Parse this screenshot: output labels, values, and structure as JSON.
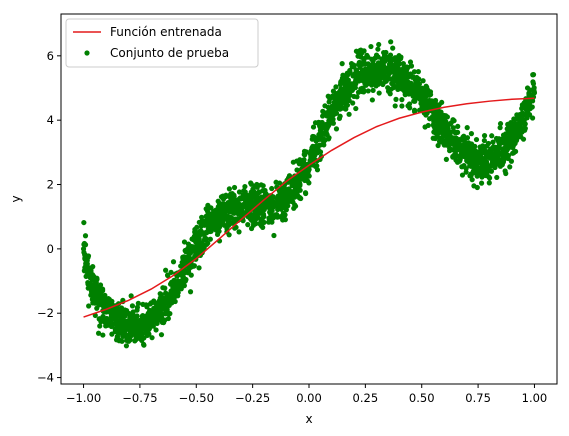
{
  "chart_data": {
    "type": "scatter",
    "title": "",
    "xlabel": "x",
    "ylabel": "y",
    "xlim": [
      -1.1,
      1.1
    ],
    "ylim": [
      -4.2,
      7.3
    ],
    "x_ticks": [
      -1.0,
      -0.75,
      -0.5,
      -0.25,
      0.0,
      0.25,
      0.5,
      0.75,
      1.0
    ],
    "x_tick_labels": [
      "−1.00",
      "−0.75",
      "−0.50",
      "−0.25",
      "0.00",
      "0.25",
      "0.50",
      "0.75",
      "1.00"
    ],
    "y_ticks": [
      -4,
      -2,
      0,
      2,
      4,
      6
    ],
    "y_tick_labels": [
      "−4",
      "−2",
      "0",
      "2",
      "4",
      "6"
    ],
    "grid": false,
    "legend_position": "top-left",
    "series": [
      {
        "name": "Función entrenada",
        "kind": "line",
        "color": "#e41a1c",
        "x": [
          -1.0,
          -0.9,
          -0.8,
          -0.7,
          -0.6,
          -0.5,
          -0.4,
          -0.3,
          -0.2,
          -0.1,
          0.0,
          0.1,
          0.2,
          0.3,
          0.4,
          0.5,
          0.6,
          0.7,
          0.8,
          0.9,
          1.0
        ],
        "y": [
          -2.12,
          -1.88,
          -1.6,
          -1.25,
          -0.82,
          -0.3,
          0.3,
          0.92,
          1.52,
          2.1,
          2.6,
          3.06,
          3.46,
          3.8,
          4.06,
          4.25,
          4.4,
          4.51,
          4.59,
          4.65,
          4.68
        ]
      },
      {
        "name": "Conjunto de prueba",
        "kind": "scatter",
        "color": "#008000",
        "x": [
          -1.0,
          -0.97,
          -0.94,
          -0.9,
          -0.86,
          -0.82,
          -0.78,
          -0.74,
          -0.7,
          -0.66,
          -0.62,
          -0.58,
          -0.54,
          -0.5,
          -0.46,
          -0.42,
          -0.38,
          -0.34,
          -0.3,
          -0.26,
          -0.22,
          -0.18,
          -0.14,
          -0.1,
          -0.06,
          -0.02,
          0.02,
          0.06,
          0.1,
          0.14,
          0.18,
          0.22,
          0.26,
          0.3,
          0.34,
          0.38,
          0.42,
          0.46,
          0.5,
          0.54,
          0.58,
          0.62,
          0.66,
          0.7,
          0.74,
          0.78,
          0.82,
          0.86,
          0.9,
          0.94,
          0.97,
          1.0
        ],
        "y": [
          0.0,
          -0.9,
          -1.5,
          -1.95,
          -2.2,
          -2.35,
          -2.45,
          -2.4,
          -2.2,
          -1.9,
          -1.5,
          -1.0,
          -0.45,
          0.05,
          0.5,
          0.85,
          1.1,
          1.25,
          1.3,
          1.3,
          1.3,
          1.3,
          1.4,
          1.6,
          1.95,
          2.45,
          3.0,
          3.6,
          4.2,
          4.7,
          5.1,
          5.35,
          5.5,
          5.6,
          5.6,
          5.5,
          5.3,
          5.05,
          4.7,
          4.3,
          3.9,
          3.5,
          3.15,
          2.9,
          2.75,
          2.7,
          2.8,
          3.05,
          3.45,
          3.95,
          4.4,
          4.85
        ],
        "spread": 0.45
      }
    ]
  }
}
